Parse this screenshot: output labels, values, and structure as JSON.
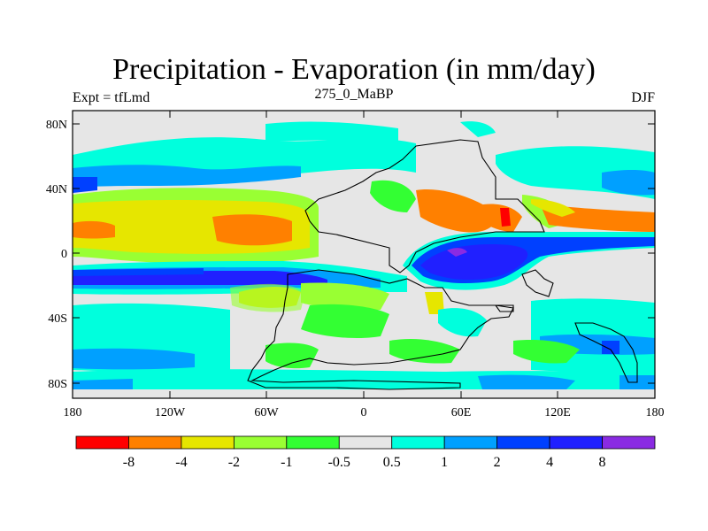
{
  "title": "Precipitation - Evaporation (in mm/day)",
  "left_string": "Expt = tfLmd",
  "center_string": "275_0_MaBP",
  "right_string": "DJF",
  "lat_labels": [
    "80N",
    "40N",
    "0",
    "40S",
    "80S"
  ],
  "lon_labels": [
    "180",
    "120W",
    "60W",
    "0",
    "60E",
    "120E",
    "180"
  ],
  "colorbar": {
    "colors": [
      "#ff0000",
      "#ff8000",
      "#e6e600",
      "#99ff33",
      "#33ff33",
      "#e6e6e6",
      "#00ffdd",
      "#00a0ff",
      "#0040ff",
      "#2020ff",
      "#8a2be2"
    ],
    "labels": [
      "-8",
      "-4",
      "-2",
      "-1",
      "-0.5",
      "0.5",
      "1",
      "2",
      "4",
      "8"
    ]
  }
}
